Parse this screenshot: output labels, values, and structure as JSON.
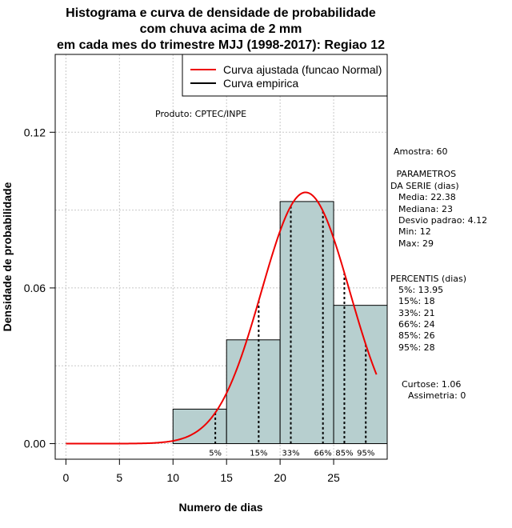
{
  "chart_data": {
    "type": "histogram",
    "title": [
      "Histograma e curva de densidade de probabilidade",
      "com chuva acima de 2 mm",
      "em cada mes do trimestre MJJ (1998-2017): Regiao 12"
    ],
    "xlabel": "Numero de dias",
    "ylabel": "Densidade de probabilidade",
    "xlim": [
      -1,
      30
    ],
    "ylim": [
      -0.006,
      0.15
    ],
    "x_ticks": [
      0,
      5,
      10,
      15,
      20,
      25
    ],
    "y_ticks": [
      0.0,
      0.06,
      0.12
    ],
    "y_tick_labels": [
      "0.00",
      "0.06",
      "0.12"
    ],
    "grid": true,
    "bins": [
      {
        "from": 10,
        "to": 15,
        "density": 0.0133
      },
      {
        "from": 15,
        "to": 20,
        "density": 0.04
      },
      {
        "from": 20,
        "to": 25,
        "density": 0.0933
      },
      {
        "from": 25,
        "to": 30,
        "density": 0.0533
      }
    ],
    "fitted_curve": {
      "name": "Curva ajustada (funcao Normal)",
      "mean": 22.38,
      "sd": 4.12,
      "x_range": [
        0,
        29
      ],
      "color": "#ee0000"
    },
    "empirical_curve": {
      "name": "Curva empirica",
      "color": "#000000"
    },
    "bar_color": "#b7cfcf",
    "percentiles": [
      {
        "label": "5%",
        "x": 13.95
      },
      {
        "label": "15%",
        "x": 18
      },
      {
        "label": "33%",
        "x": 21
      },
      {
        "label": "66%",
        "x": 24
      },
      {
        "label": "85%",
        "x": 26
      },
      {
        "label": "95%",
        "x": 28
      }
    ],
    "legend_position": "top-right"
  },
  "source_note": "Produto: CPTEC/INPE",
  "stats": {
    "amostra": "Amostra: 60",
    "parametros_title": [
      " PARAMETROS",
      "DA SERIE (dias)"
    ],
    "parametros": [
      "Media: 22.38",
      "Mediana: 23",
      "Desvio padrao: 4.12",
      "Min: 12",
      "Max: 29"
    ],
    "percentis_title": "PERCENTIS (dias)",
    "percentis": [
      "5%: 13.95",
      "15%: 18",
      "33%: 21",
      "66%: 24",
      "85%: 26",
      "95%: 28"
    ],
    "curtose": "Curtose: 1.06",
    "assimetria": "Assimetria: 0"
  }
}
